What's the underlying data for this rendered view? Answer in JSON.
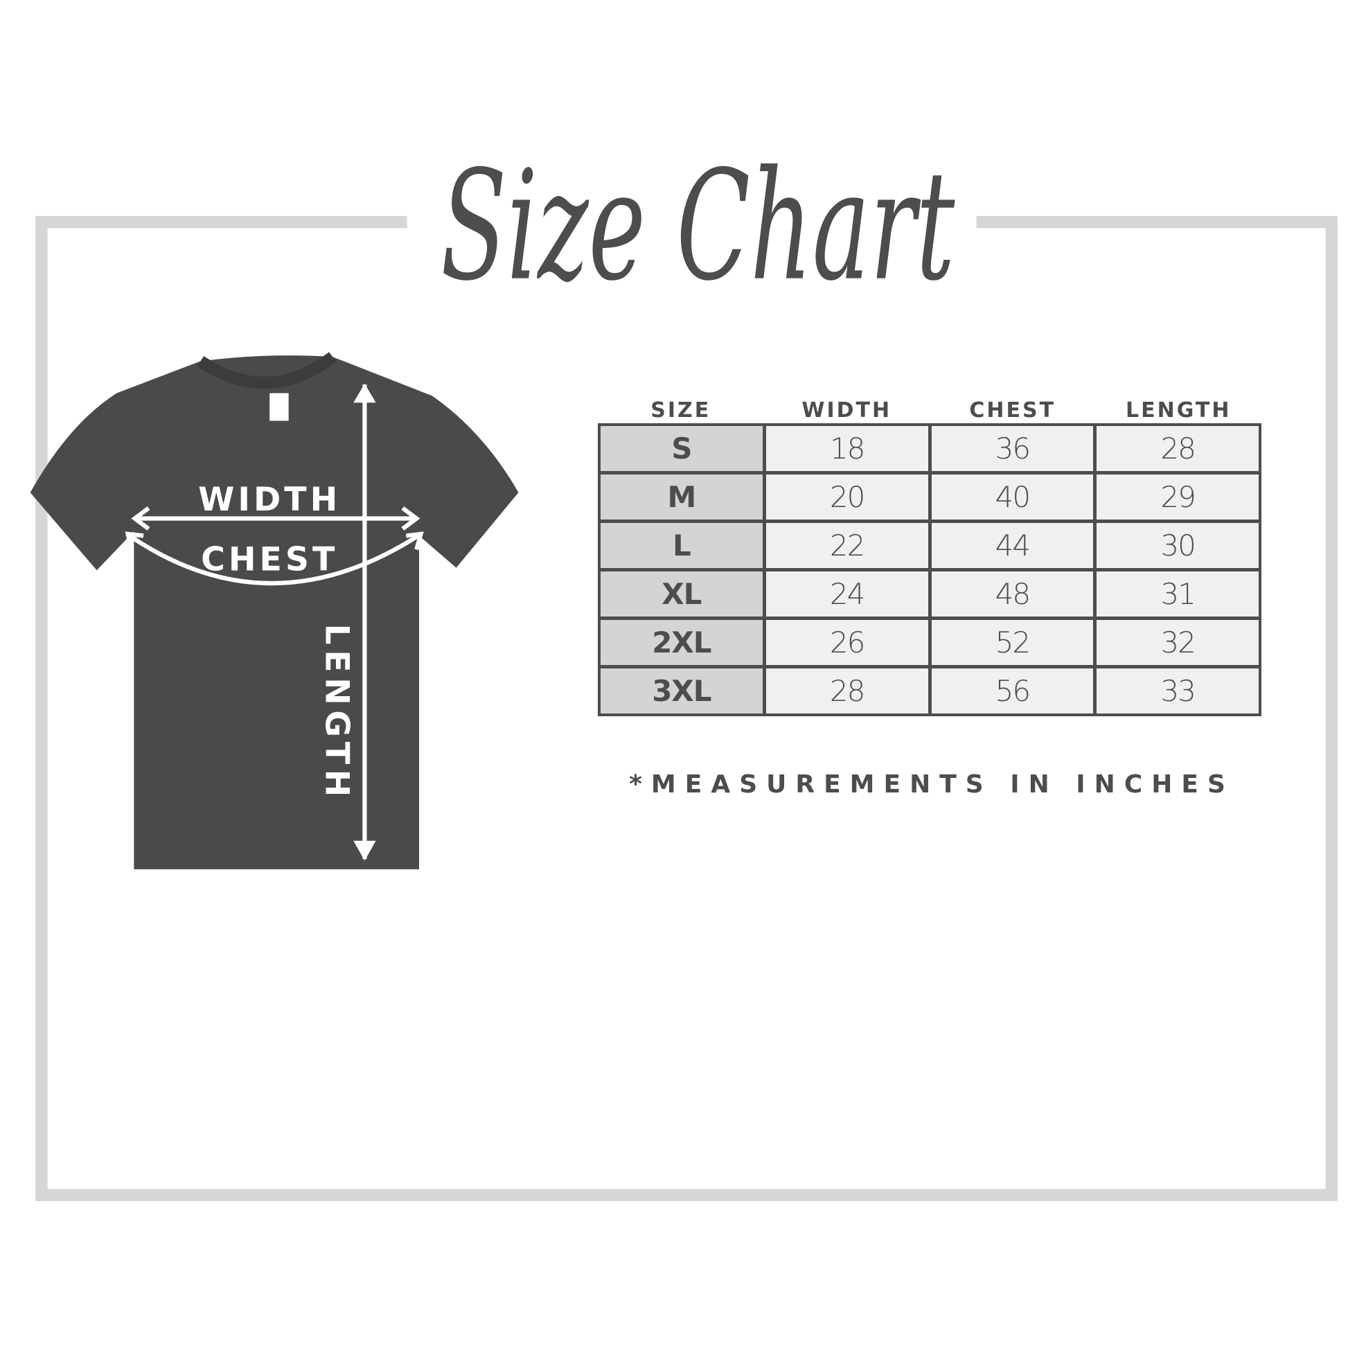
{
  "title": "Size Chart",
  "diagram": {
    "width_label": "WIDTH",
    "chest_label": "CHEST",
    "length_label": "LENGTH",
    "shirt_color": "#4a4a4a"
  },
  "table": {
    "headers": [
      "SIZE",
      "WIDTH",
      "CHEST",
      "LENGTH"
    ],
    "rows": [
      [
        "S",
        "18",
        "36",
        "28"
      ],
      [
        "M",
        "20",
        "40",
        "29"
      ],
      [
        "L",
        "22",
        "44",
        "30"
      ],
      [
        "XL",
        "24",
        "48",
        "31"
      ],
      [
        "2XL",
        "26",
        "52",
        "32"
      ],
      [
        "3XL",
        "28",
        "56",
        "33"
      ]
    ]
  },
  "note": "*MEASUREMENTS IN INCHES",
  "colors": {
    "text": "#4d4d4d",
    "frame": "#d6d6d6",
    "cell": "#f0f0f0",
    "size_cell": "#d4d4d4"
  }
}
